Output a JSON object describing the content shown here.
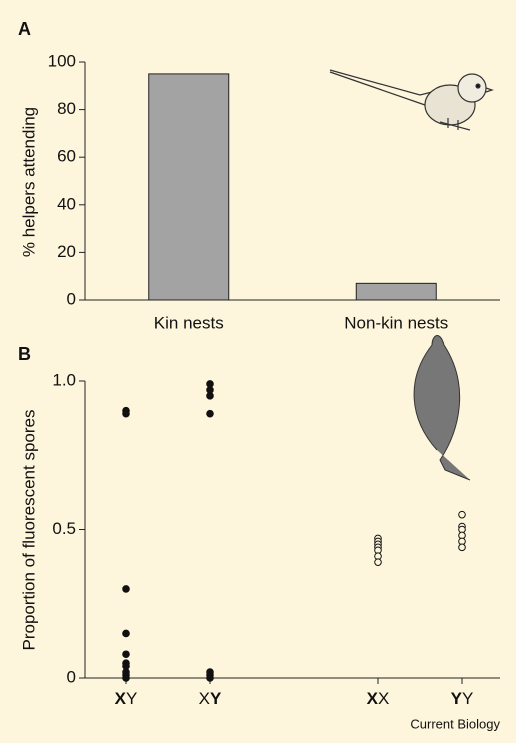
{
  "chart_data": [
    {
      "type": "bar",
      "label": "A",
      "ylabel": "% helpers attending",
      "categories": [
        "Kin nests",
        "Non-kin nests"
      ],
      "values": [
        95,
        7
      ],
      "color": "#a3a3a3",
      "ylim": [
        0,
        100
      ],
      "yticks": [
        0,
        20,
        40,
        60,
        80,
        100
      ]
    },
    {
      "type": "strip",
      "label": "B",
      "ylabel": "Proportion of fluorescent spores",
      "categories": [
        "XY",
        "XY",
        null,
        "XX",
        "YY"
      ],
      "bold_letter": [
        0,
        1,
        null,
        0,
        0
      ],
      "markers": [
        "filled",
        "filled",
        null,
        "open",
        "open"
      ],
      "values": [
        [
          0.9,
          0.89,
          0.3,
          0.15,
          0.08,
          0.05,
          0.04,
          0.02,
          0.01,
          0.0
        ],
        [
          0.99,
          0.97,
          0.95,
          0.89,
          0.02,
          0.01,
          0.0
        ],
        null,
        [
          0.47,
          0.46,
          0.45,
          0.44,
          0.43,
          0.41,
          0.39
        ],
        [
          0.55,
          0.51,
          0.5,
          0.48,
          0.46,
          0.44
        ]
      ],
      "color": "#111111",
      "ylim": [
        0,
        1
      ],
      "yticks": [
        0,
        0.5,
        {
          "value": 1,
          "label": "1.0"
        }
      ]
    }
  ],
  "footer": "Current Biology"
}
